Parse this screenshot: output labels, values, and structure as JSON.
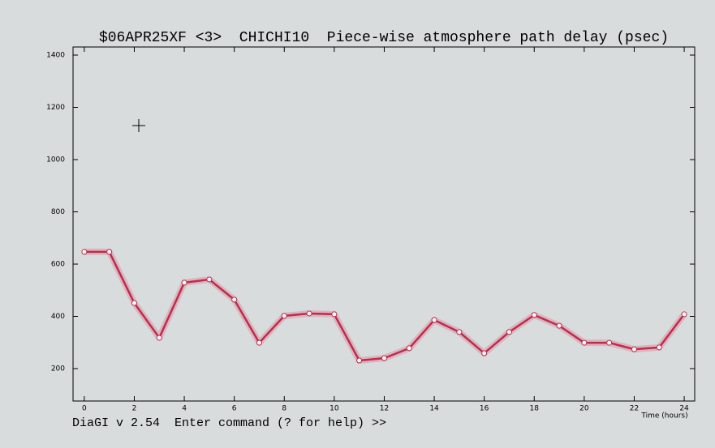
{
  "chart_data": {
    "type": "line",
    "title": "$06APR25XF <3>  CHICHI10  Piece-wise atmosphere path delay (psec)",
    "xlabel": "Time (hours)",
    "x": [
      0,
      1,
      2,
      3,
      4,
      5,
      6,
      7,
      8,
      9,
      10,
      11,
      12,
      13,
      14,
      15,
      16,
      17,
      18,
      19,
      20,
      21,
      22,
      23,
      24
    ],
    "series": [
      {
        "color": "#c8264a",
        "values": [
          647,
          647,
          451,
          318,
          529,
          541,
          464,
          299,
          402,
          411,
          408,
          231,
          240,
          278,
          386,
          340,
          259,
          340,
          405,
          364,
          299,
          299,
          274,
          281,
          408
        ]
      }
    ],
    "xlim": [
      -0.45,
      24.42
    ],
    "xticks": [
      0,
      2,
      4,
      6,
      8,
      10,
      12,
      14,
      16,
      18,
      20,
      22,
      24
    ],
    "ylim": [
      76,
      1431
    ],
    "yticks": [
      200,
      400,
      600,
      800,
      1000,
      1200,
      1400
    ]
  },
  "command_line": "DiaGI v 2.54  Enter command (? for help) >>"
}
